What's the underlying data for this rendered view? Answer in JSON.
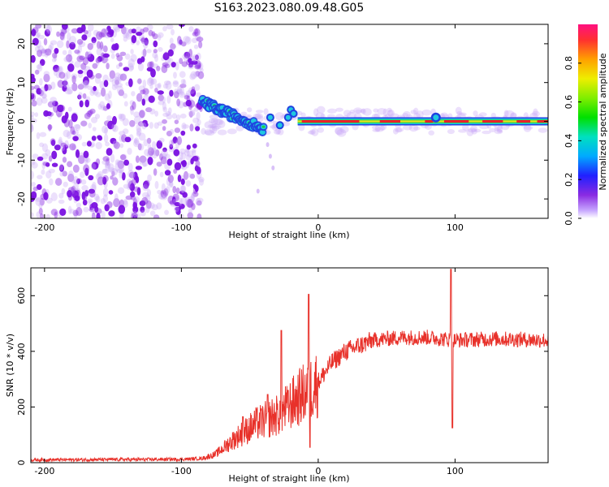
{
  "title": "S163.2023.080.09.48.G05",
  "colors": {
    "snr_line": "#e8312a",
    "scatter_purple": "#8a2be2",
    "band_red": "#e8222a",
    "band_yellow": "#e0e020",
    "band_green": "#20d040",
    "band_cyan": "#20c8e0",
    "band_blue": "#2040e0"
  },
  "chart_data": [
    {
      "type": "heatmap",
      "title": "S163.2023.080.09.48.G05",
      "xlabel": "Height of straight line (km)",
      "ylabel": "Frequency (Hz)",
      "xlim": [
        -210,
        168
      ],
      "ylim": [
        -25,
        25
      ],
      "xticks": [
        "-200",
        "-100",
        "0",
        "100"
      ],
      "xtick_values": [
        -200,
        -100,
        0,
        100
      ],
      "yticks": [
        "-20",
        "-10",
        "0",
        "10",
        "20"
      ],
      "ytick_values": [
        -20,
        -10,
        0,
        10,
        20
      ],
      "colorbar": {
        "label": "Normalized spectral amplitude",
        "range": [
          0,
          1
        ],
        "ticks": [
          "0.0",
          "0.2",
          "0.4",
          "0.6",
          "0.8"
        ],
        "tick_values": [
          0.0,
          0.2,
          0.4,
          0.6,
          0.8
        ],
        "colormap": "rainbow"
      },
      "regions": [
        {
          "x_range": [
            -210,
            -85
          ],
          "y_range": [
            -25,
            25
          ],
          "description": "scattered low-amplitude noise blobs",
          "amplitude": 0.1
        },
        {
          "x_range": [
            -85,
            -40
          ],
          "y_center_start": 5,
          "y_center_end": -2,
          "description": "descending band",
          "amplitude": 0.3
        },
        {
          "x_range": [
            -40,
            168
          ],
          "y_center": 0,
          "description": "steady band at ~0 Hz",
          "amplitude": 0.95
        }
      ]
    },
    {
      "type": "line",
      "xlabel": "Height of straight line (km)",
      "ylabel": "SNR (10 * v/v)",
      "xlim": [
        -210,
        168
      ],
      "ylim": [
        0,
        700
      ],
      "xticks": [
        "-200",
        "-100",
        "0",
        "100"
      ],
      "xtick_values": [
        -200,
        -100,
        0,
        100
      ],
      "yticks": [
        "0",
        "200",
        "400",
        "600"
      ],
      "ytick_values": [
        0,
        200,
        400,
        600
      ],
      "envelope": {
        "x": [
          -210,
          -100,
          -85,
          -75,
          -60,
          -45,
          -30,
          -15,
          0,
          10,
          20,
          30,
          40,
          60,
          80,
          100,
          130,
          168
        ],
        "y": [
          10,
          12,
          15,
          30,
          90,
          140,
          170,
          230,
          290,
          360,
          400,
          420,
          440,
          450,
          450,
          440,
          445,
          440
        ]
      },
      "spikes": [
        {
          "x": -55,
          "y": 165
        },
        {
          "x": -37,
          "y": 245
        },
        {
          "x": -27,
          "y": 475
        },
        {
          "x": -22,
          "y": 260
        },
        {
          "x": -7,
          "y": 605
        },
        {
          "x": -6,
          "y": 55
        },
        {
          "x": 97,
          "y": 695
        },
        {
          "x": 98,
          "y": 125
        }
      ]
    }
  ]
}
